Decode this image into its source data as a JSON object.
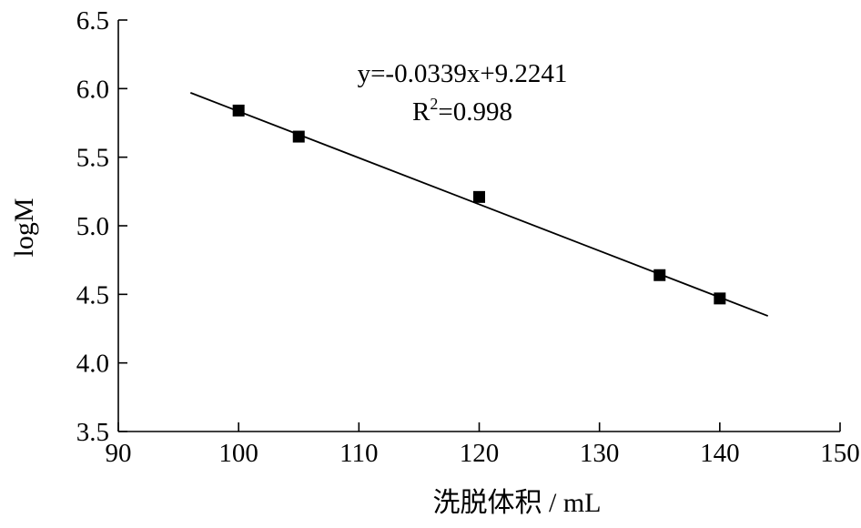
{
  "chart_data": {
    "type": "scatter",
    "xlabel": "洗脱体积 / mL",
    "ylabel": "logM",
    "xlim": [
      90,
      150
    ],
    "ylim": [
      3.5,
      6.5
    ],
    "x_ticks": [
      "90",
      "100",
      "110",
      "120",
      "130",
      "140",
      "150"
    ],
    "y_ticks": [
      "3.5",
      "4.0",
      "4.5",
      "5.0",
      "5.5",
      "6.0",
      "6.5"
    ],
    "grid": false,
    "points": [
      {
        "x": 100,
        "y": 5.84
      },
      {
        "x": 105,
        "y": 5.65
      },
      {
        "x": 120,
        "y": 5.21
      },
      {
        "x": 135,
        "y": 4.64
      },
      {
        "x": 140,
        "y": 4.47
      }
    ],
    "fit": {
      "slope": -0.0339,
      "intercept": 9.2241,
      "x_range": [
        96,
        144
      ],
      "equation": "y=-0.0339x+9.2241",
      "r2_label": "R",
      "r2_sup": "2",
      "r2_value": "=0.998"
    },
    "marker_color": "#000000",
    "line_color": "#000000"
  }
}
